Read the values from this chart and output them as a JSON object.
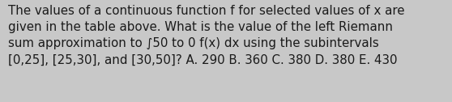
{
  "lines": [
    "The values of a continuous function f for selected values of x are",
    "given in the table above. What is the value of the left Riemann",
    "sum approximation to ∫50 to 0 f(x) dx using the subintervals",
    "[0,25], [25,30], and [30,50]? A. 290 B. 360 C. 380 D. 380 E. 430"
  ],
  "background_color": "#c8c8c8",
  "text_color": "#1a1a1a",
  "font_size": 10.8,
  "fig_width": 5.58,
  "fig_height": 1.26,
  "dpi": 100
}
